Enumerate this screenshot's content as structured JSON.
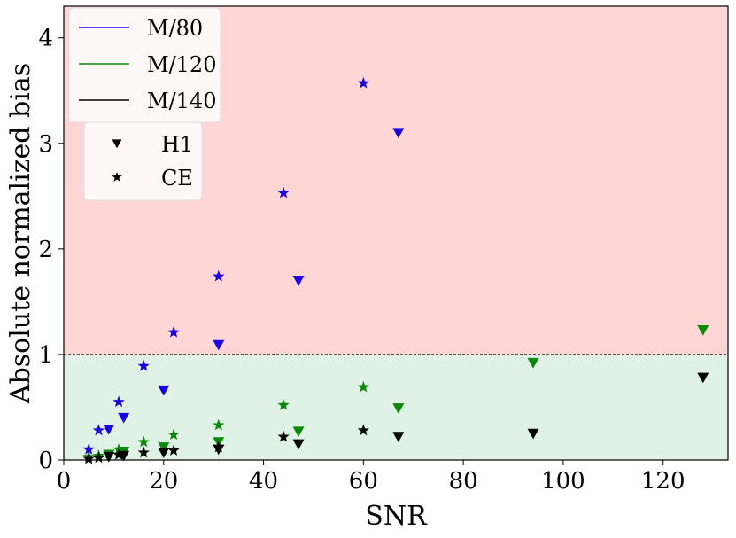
{
  "chart_data": {
    "type": "scatter",
    "xlabel": "SNR",
    "ylabel": "Absolute normalized bias",
    "xlim": [
      0,
      133
    ],
    "ylim": [
      0,
      4.3
    ],
    "xticks": [
      0,
      20,
      40,
      60,
      80,
      100,
      120
    ],
    "yticks": [
      0,
      1,
      2,
      3,
      4
    ],
    "threshold": 1,
    "regions": {
      "above_color": "#ffd6d6",
      "below_color": "#e0f2e6"
    },
    "color_legend": [
      {
        "label": "M/80",
        "color": "#1a00e6"
      },
      {
        "label": "M/120",
        "color": "#0a8a0a"
      },
      {
        "label": "M/140",
        "color": "#000000"
      }
    ],
    "marker_legend": [
      {
        "label": "H1",
        "marker": "triangle-down"
      },
      {
        "label": "CE",
        "marker": "star"
      }
    ],
    "series": [
      {
        "name": "M/80",
        "method": "H1",
        "color": "#1a00e6",
        "marker": "triangle-down",
        "points": [
          [
            9,
            0.29
          ],
          [
            12,
            0.4
          ],
          [
            20,
            0.66
          ],
          [
            31,
            1.09
          ],
          [
            47,
            1.7
          ],
          [
            67,
            3.1
          ]
        ]
      },
      {
        "name": "M/80",
        "method": "CE",
        "color": "#1a00e6",
        "marker": "star",
        "points": [
          [
            5,
            0.1
          ],
          [
            7,
            0.28
          ],
          [
            11,
            0.55
          ],
          [
            16,
            0.89
          ],
          [
            22,
            1.21
          ],
          [
            31,
            1.74
          ],
          [
            44,
            2.53
          ],
          [
            60,
            3.57
          ]
        ]
      },
      {
        "name": "M/120",
        "method": "H1",
        "color": "#0a8a0a",
        "marker": "triangle-down",
        "points": [
          [
            9,
            0.05
          ],
          [
            12,
            0.08
          ],
          [
            20,
            0.12
          ],
          [
            31,
            0.17
          ],
          [
            47,
            0.27
          ],
          [
            67,
            0.49
          ],
          [
            94,
            0.92
          ],
          [
            128,
            1.23
          ]
        ]
      },
      {
        "name": "M/120",
        "method": "CE",
        "color": "#0a8a0a",
        "marker": "star",
        "points": [
          [
            5,
            0.03
          ],
          [
            7,
            0.04
          ],
          [
            11,
            0.1
          ],
          [
            16,
            0.17
          ],
          [
            22,
            0.24
          ],
          [
            31,
            0.33
          ],
          [
            44,
            0.52
          ],
          [
            60,
            0.69
          ]
        ]
      },
      {
        "name": "M/140",
        "method": "H1",
        "color": "#000000",
        "marker": "triangle-down",
        "points": [
          [
            9,
            0.03
          ],
          [
            12,
            0.04
          ],
          [
            20,
            0.07
          ],
          [
            31,
            0.1
          ],
          [
            47,
            0.15
          ],
          [
            67,
            0.22
          ],
          [
            94,
            0.25
          ],
          [
            128,
            0.78
          ]
        ]
      },
      {
        "name": "M/140",
        "method": "CE",
        "color": "#000000",
        "marker": "star",
        "points": [
          [
            5,
            0.01
          ],
          [
            7,
            0.02
          ],
          [
            11,
            0.05
          ],
          [
            16,
            0.07
          ],
          [
            22,
            0.09
          ],
          [
            31,
            0.12
          ],
          [
            44,
            0.22
          ],
          [
            60,
            0.28
          ]
        ]
      }
    ]
  }
}
